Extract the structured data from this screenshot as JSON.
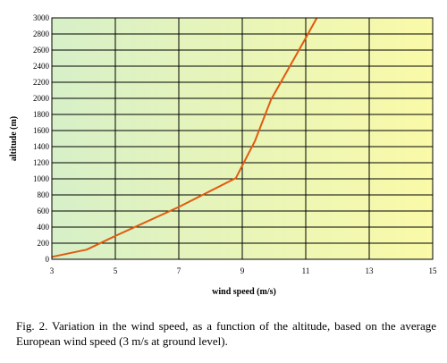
{
  "chart_data": {
    "type": "line",
    "xlabel": "wind speed (m/s)",
    "ylabel": "altitude (m)",
    "xlim": [
      3,
      15
    ],
    "ylim": [
      0,
      3000
    ],
    "xticks": [
      3,
      5,
      7,
      9,
      11,
      13,
      15
    ],
    "yticks": [
      0,
      200,
      400,
      600,
      800,
      1000,
      1200,
      1400,
      1600,
      1800,
      2000,
      2200,
      2400,
      2600,
      2800,
      3000
    ],
    "grid": "horizontal and vertical",
    "series": [
      {
        "color": "#e05a10",
        "points": [
          {
            "x": 3.0,
            "y": 30
          },
          {
            "x": 4.1,
            "y": 120
          },
          {
            "x": 5.0,
            "y": 290
          },
          {
            "x": 7.0,
            "y": 650
          },
          {
            "x": 8.8,
            "y": 1010
          },
          {
            "x": 9.4,
            "y": 1470
          },
          {
            "x": 9.9,
            "y": 1980
          },
          {
            "x": 11.0,
            "y": 2750
          },
          {
            "x": 11.35,
            "y": 3000
          }
        ]
      }
    ],
    "background_gradient": [
      "#d7f0c8",
      "#fafaa8"
    ]
  },
  "caption": {
    "text": "Fig. 2.   Variation in the wind speed, as a function of the altitude, based on the average European wind speed (3 m/s at ground level)."
  }
}
